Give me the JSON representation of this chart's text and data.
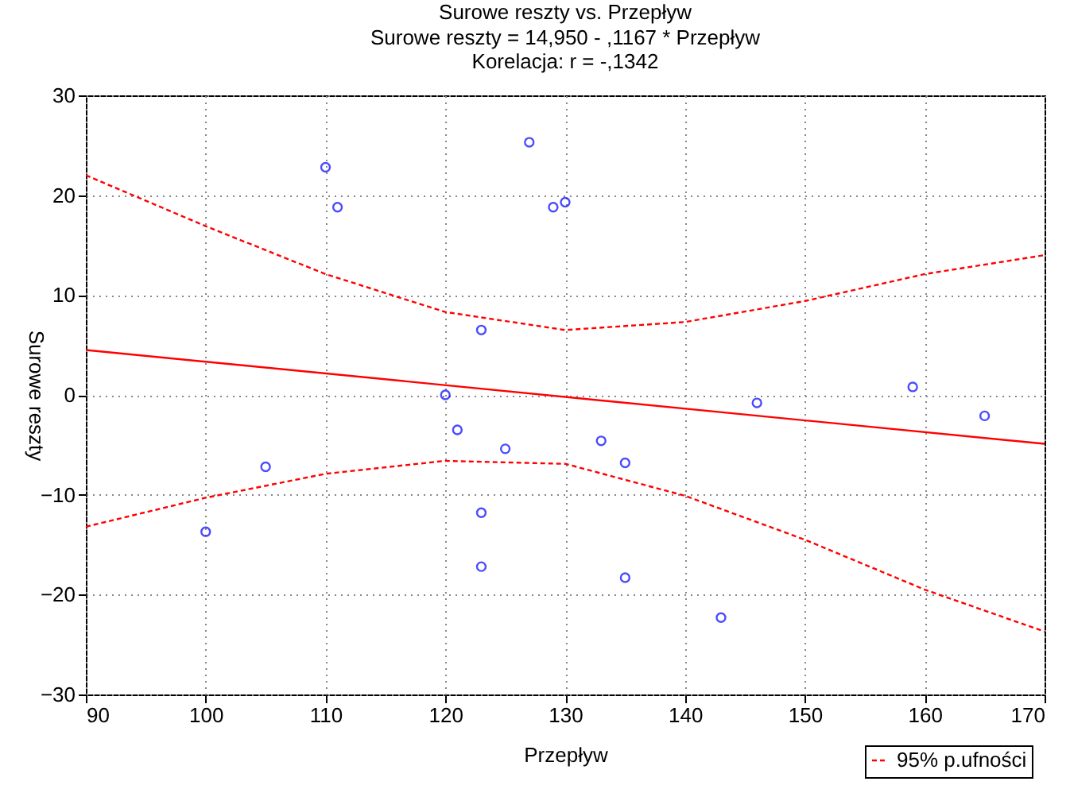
{
  "chart_data": {
    "type": "scatter",
    "title": "Surowe reszty vs. Przepływ",
    "subtitle": "Surowe reszty = 14,950 - ,1167  * Przepływ",
    "annotations": [
      "Korelacja: r =   -,1342"
    ],
    "xlabel": "Przepływ",
    "ylabel": "Surowe reszty",
    "xlim": [
      90,
      170
    ],
    "xticks": [
      90,
      100,
      110,
      120,
      130,
      140,
      150,
      160,
      170
    ],
    "ylim": [
      -30,
      30
    ],
    "yticks": [
      -30,
      -20,
      -10,
      0,
      10,
      20,
      30
    ],
    "grid": true,
    "legend": "bottom right",
    "series": [
      {
        "color": "#0000ff",
        "marker": "circle",
        "x": [
          100,
          105,
          110,
          111,
          120,
          121,
          123,
          123,
          123,
          125,
          127,
          129,
          130,
          133,
          135,
          135,
          143,
          146,
          159,
          165
        ],
        "values": [
          -13.7,
          -7.2,
          22.8,
          18.8,
          0,
          -3.5,
          6.5,
          -11.8,
          -17.2,
          -5.4,
          25.3,
          18.8,
          19.3,
          -4.6,
          -6.8,
          -18.3,
          -22.3,
          -0.8,
          0.8,
          -2.1
        ]
      },
      {
        "type": "line",
        "color": "#ff0000",
        "line_style": "solid",
        "x": [
          90,
          170
        ],
        "values": [
          4.5,
          -4.9
        ]
      },
      {
        "type": "line",
        "name": "95% p.ufności",
        "color": "#ff0000",
        "line_style": "dashed",
        "x": [
          90,
          100,
          110,
          120,
          130,
          140,
          150,
          160,
          170
        ],
        "values": [
          22.0,
          16.9,
          12.1,
          8.3,
          6.5,
          7.3,
          9.4,
          12.1,
          14.0
        ]
      },
      {
        "type": "line",
        "color": "#ff0000",
        "line_style": "dashed",
        "x": [
          90,
          100,
          110,
          120,
          130,
          140,
          150,
          160,
          170
        ],
        "values": [
          -13.2,
          -10.3,
          -7.9,
          -6.6,
          -6.9,
          -10.1,
          -14.5,
          -19.5,
          -23.7
        ]
      }
    ]
  }
}
